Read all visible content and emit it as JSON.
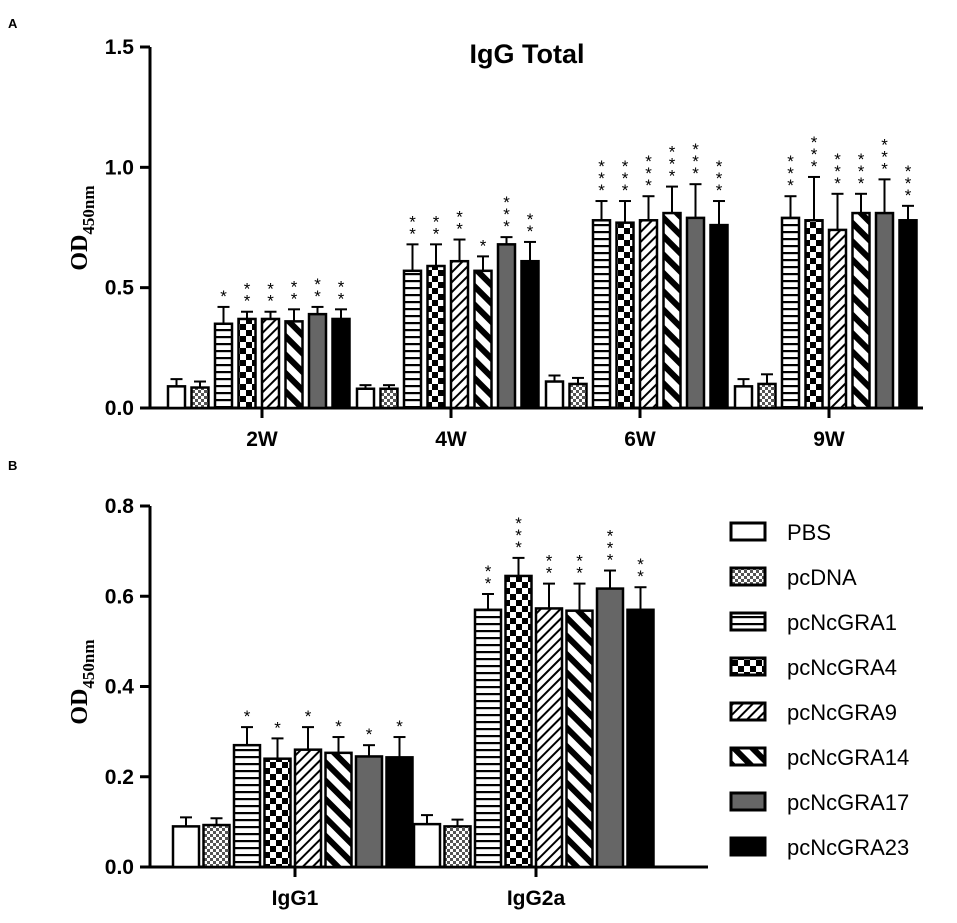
{
  "panels": {
    "a_label": "A",
    "b_label": "B"
  },
  "ylabel": {
    "main": "OD",
    "sub": "450nm"
  },
  "legend": [
    {
      "name": "PBS",
      "pattern": "white"
    },
    {
      "name": "pcDNA",
      "pattern": "checker-fine"
    },
    {
      "name": "pcNcGRA1",
      "pattern": "horizontal"
    },
    {
      "name": "pcNcGRA4",
      "pattern": "checker-bold"
    },
    {
      "name": "pcNcGRA9",
      "pattern": "diag-thin"
    },
    {
      "name": "pcNcGRA14",
      "pattern": "diag-thick"
    },
    {
      "name": "pcNcGRA17",
      "pattern": "gray"
    },
    {
      "name": "pcNcGRA23",
      "pattern": "black"
    }
  ],
  "chart_data": [
    {
      "type": "bar",
      "title": "IgG Total",
      "xlabel": "",
      "ylabel": "OD450nm",
      "ylim": [
        0,
        1.5
      ],
      "yticks": [
        "0.0",
        "0.5",
        "1.0",
        "1.5"
      ],
      "ytick_values": [
        0,
        0.5,
        1.0,
        1.5
      ],
      "categories": [
        "2W",
        "4W",
        "6W",
        "9W"
      ],
      "series": [
        {
          "name": "PBS",
          "values": [
            0.09,
            0.08,
            0.11,
            0.09
          ],
          "errors": [
            0.03,
            0.015,
            0.025,
            0.03
          ],
          "stars": [
            "",
            "",
            "",
            ""
          ]
        },
        {
          "name": "pcDNA",
          "values": [
            0.085,
            0.08,
            0.1,
            0.1
          ],
          "errors": [
            0.025,
            0.015,
            0.025,
            0.04
          ],
          "stars": [
            "",
            "",
            "",
            ""
          ]
        },
        {
          "name": "pcNcGRA1",
          "values": [
            0.35,
            0.57,
            0.78,
            0.79
          ],
          "errors": [
            0.07,
            0.11,
            0.08,
            0.09
          ],
          "stars": [
            "*",
            "**",
            "***",
            "***"
          ]
        },
        {
          "name": "pcNcGRA4",
          "values": [
            0.37,
            0.59,
            0.77,
            0.78
          ],
          "errors": [
            0.03,
            0.09,
            0.09,
            0.18
          ],
          "stars": [
            "**",
            "**",
            "***",
            "***"
          ]
        },
        {
          "name": "pcNcGRA9",
          "values": [
            0.37,
            0.61,
            0.78,
            0.74
          ],
          "errors": [
            0.03,
            0.09,
            0.1,
            0.15
          ],
          "stars": [
            "**",
            "**",
            "***",
            "***"
          ]
        },
        {
          "name": "pcNcGRA14",
          "values": [
            0.36,
            0.57,
            0.81,
            0.81
          ],
          "errors": [
            0.05,
            0.06,
            0.11,
            0.08
          ],
          "stars": [
            "**",
            "*",
            "***",
            "***"
          ]
        },
        {
          "name": "pcNcGRA17",
          "values": [
            0.39,
            0.68,
            0.79,
            0.81
          ],
          "errors": [
            0.03,
            0.03,
            0.14,
            0.14
          ],
          "stars": [
            "**",
            "***",
            "***",
            "***"
          ]
        },
        {
          "name": "pcNcGRA23",
          "values": [
            0.37,
            0.61,
            0.76,
            0.78
          ],
          "errors": [
            0.04,
            0.08,
            0.1,
            0.06
          ],
          "stars": [
            "**",
            "**",
            "***",
            "***"
          ]
        }
      ]
    },
    {
      "type": "bar",
      "title": "",
      "xlabel": "",
      "ylabel": "OD450nm",
      "ylim": [
        0,
        0.8
      ],
      "yticks": [
        "0.0",
        "0.2",
        "0.4",
        "0.6",
        "0.8"
      ],
      "ytick_values": [
        0,
        0.2,
        0.4,
        0.6,
        0.8
      ],
      "categories": [
        "IgG1",
        "IgG2a"
      ],
      "series": [
        {
          "name": "PBS",
          "values": [
            0.09,
            0.095
          ],
          "errors": [
            0.02,
            0.02
          ],
          "stars": [
            "",
            ""
          ]
        },
        {
          "name": "pcDNA",
          "values": [
            0.093,
            0.09
          ],
          "errors": [
            0.015,
            0.015
          ],
          "stars": [
            "",
            ""
          ]
        },
        {
          "name": "pcNcGRA1",
          "values": [
            0.27,
            0.57
          ],
          "errors": [
            0.04,
            0.035
          ],
          "stars": [
            "*",
            "**"
          ]
        },
        {
          "name": "pcNcGRA4",
          "values": [
            0.24,
            0.645
          ],
          "errors": [
            0.045,
            0.04
          ],
          "stars": [
            "*",
            "***"
          ]
        },
        {
          "name": "pcNcGRA9",
          "values": [
            0.26,
            0.573
          ],
          "errors": [
            0.05,
            0.055
          ],
          "stars": [
            "*",
            "**"
          ]
        },
        {
          "name": "pcNcGRA14",
          "values": [
            0.253,
            0.568
          ],
          "errors": [
            0.035,
            0.06
          ],
          "stars": [
            "*",
            "**"
          ]
        },
        {
          "name": "pcNcGRA17",
          "values": [
            0.245,
            0.617
          ],
          "errors": [
            0.025,
            0.04
          ],
          "stars": [
            "*",
            "***"
          ]
        },
        {
          "name": "pcNcGRA23",
          "values": [
            0.243,
            0.57
          ],
          "errors": [
            0.045,
            0.05
          ],
          "stars": [
            "*",
            "**"
          ]
        }
      ]
    }
  ]
}
